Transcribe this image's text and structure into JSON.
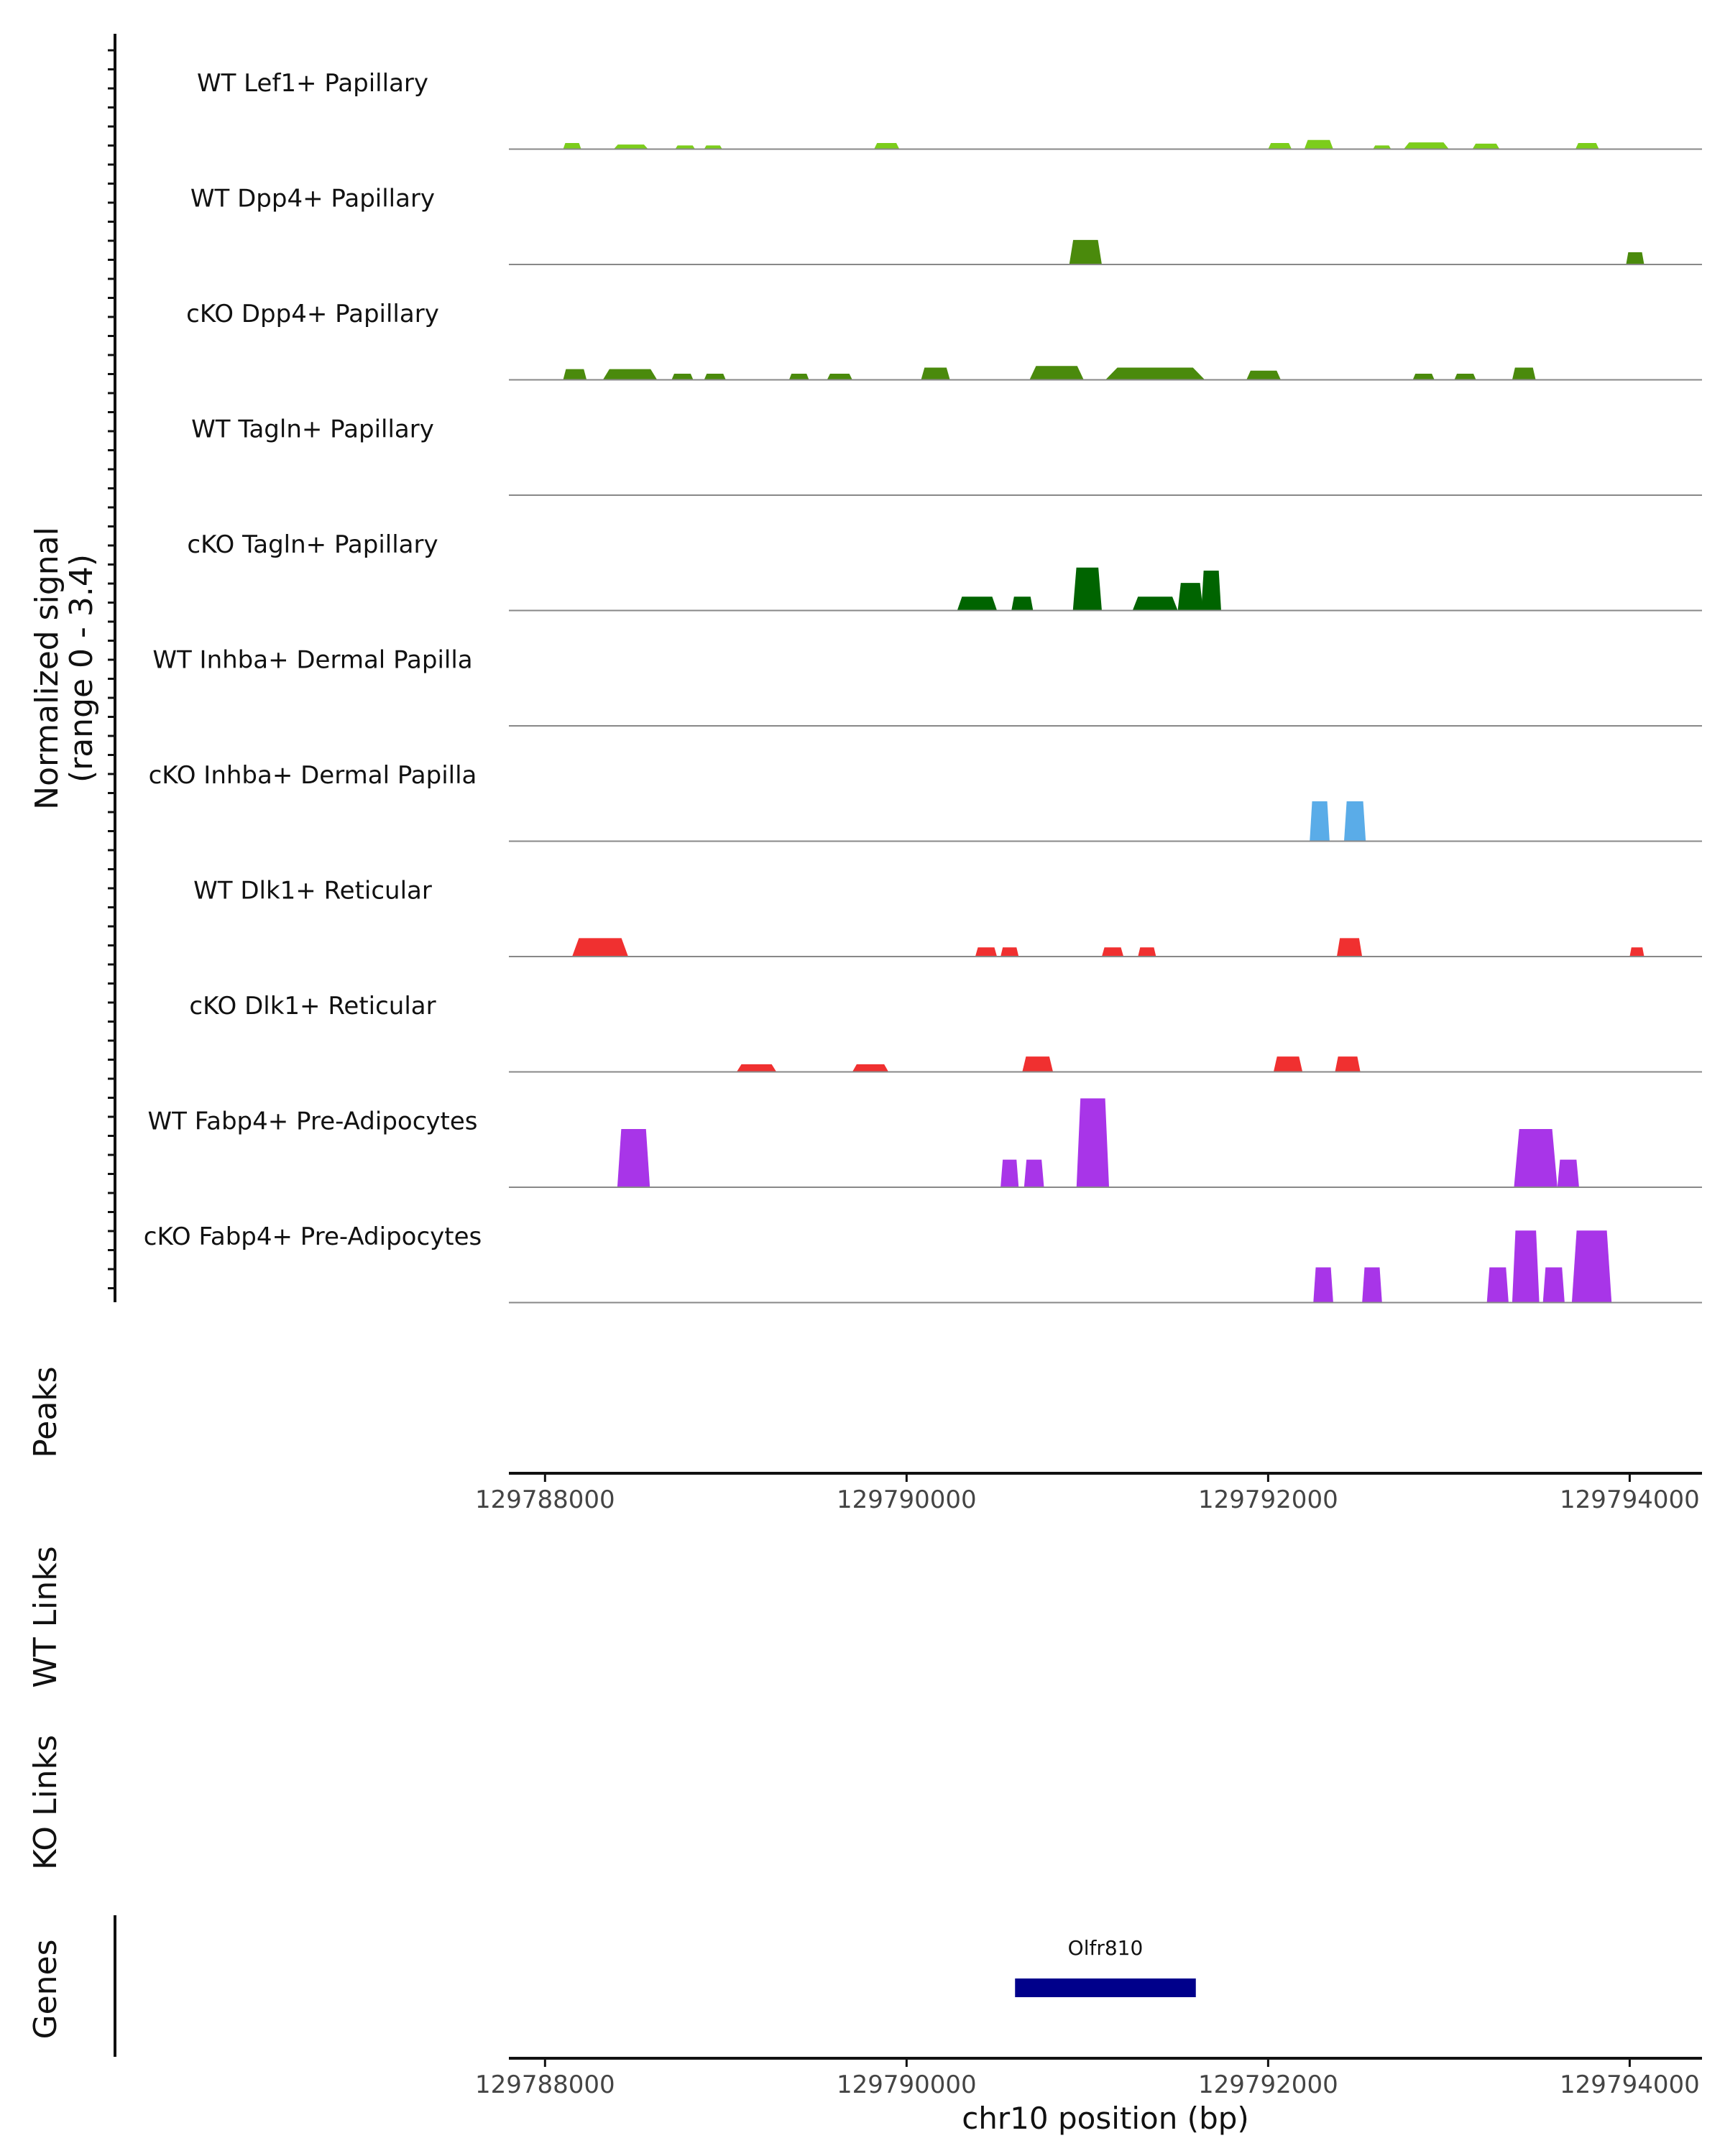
{
  "chart_data": {
    "type": "area",
    "chromosome": "chr10",
    "xlim": [
      129787800,
      129794400
    ],
    "x_ticks": [
      "129788000",
      "129790000",
      "129792000",
      "129794000"
    ],
    "x_tick_values": [
      129788000,
      129790000,
      129792000,
      129794000
    ],
    "xlabel": "chr10 position (bp)",
    "ylabel_line1": "Normalized signal",
    "ylabel_line2": "(range 0 - 3.4)",
    "ylim": [
      0,
      3.4
    ],
    "side_labels": {
      "peaks": "Peaks",
      "wt_links": "WT Links",
      "ko_links": "KO Links",
      "genes": "Genes"
    },
    "tracks": [
      {
        "name": "WT Lef1+ Papillary",
        "color": "#7ccd1c",
        "peaks": [
          [
            129788100,
            129788200,
            0.2
          ],
          [
            129788380,
            129788570,
            0.15
          ],
          [
            129788720,
            129788830,
            0.12
          ],
          [
            129788880,
            129788980,
            0.12
          ],
          [
            129789820,
            129789960,
            0.2
          ],
          [
            129792000,
            129792130,
            0.2
          ],
          [
            129792200,
            129792360,
            0.3
          ],
          [
            129792580,
            129792680,
            0.12
          ],
          [
            129792750,
            129793000,
            0.22
          ],
          [
            129793130,
            129793280,
            0.18
          ],
          [
            129793700,
            129793830,
            0.2
          ]
        ]
      },
      {
        "name": "WT Dpp4+ Papillary",
        "color": "#4a8a0c",
        "peaks": [
          [
            129790900,
            129791080,
            0.8
          ],
          [
            129793980,
            129794080,
            0.4
          ]
        ]
      },
      {
        "name": "cKO Dpp4+ Papillary",
        "color": "#4a8a0c",
        "peaks": [
          [
            129788100,
            129788230,
            0.35
          ],
          [
            129788320,
            129788620,
            0.35
          ],
          [
            129788700,
            129788820,
            0.2
          ],
          [
            129788880,
            129789000,
            0.2
          ],
          [
            129789350,
            129789460,
            0.2
          ],
          [
            129789560,
            129789700,
            0.2
          ],
          [
            129790080,
            129790240,
            0.4
          ],
          [
            129790680,
            129790980,
            0.45
          ],
          [
            129791100,
            129791650,
            0.4
          ],
          [
            129791880,
            129792070,
            0.3
          ],
          [
            129792800,
            129792920,
            0.2
          ],
          [
            129793030,
            129793150,
            0.2
          ],
          [
            129793350,
            129793480,
            0.4
          ]
        ]
      },
      {
        "name": "WT Tagln+ Papillary",
        "color": "#006400",
        "peaks": []
      },
      {
        "name": "cKO Tagln+ Papillary",
        "color": "#006400",
        "peaks": [
          [
            129790280,
            129790500,
            0.45
          ],
          [
            129790580,
            129790700,
            0.45
          ],
          [
            129790920,
            129791080,
            1.4
          ],
          [
            129791250,
            129791500,
            0.45
          ],
          [
            129791500,
            129791640,
            0.9
          ],
          [
            129791630,
            129791740,
            1.3
          ]
        ]
      },
      {
        "name": "WT Inhba+ Dermal Papilla",
        "color": "#5aace8",
        "peaks": []
      },
      {
        "name": "cKO Inhba+ Dermal Papilla",
        "color": "#5aace8",
        "peaks": [
          [
            129792230,
            129792340,
            1.3
          ],
          [
            129792420,
            129792540,
            1.3
          ]
        ]
      },
      {
        "name": "WT Dlk1+ Reticular",
        "color": "#f03030",
        "peaks": [
          [
            129788150,
            129788460,
            0.6
          ],
          [
            129790380,
            129790500,
            0.3
          ],
          [
            129790520,
            129790620,
            0.3
          ],
          [
            129791080,
            129791200,
            0.3
          ],
          [
            129791280,
            129791380,
            0.3
          ],
          [
            129792380,
            129792520,
            0.6
          ],
          [
            129794000,
            129794080,
            0.3
          ]
        ]
      },
      {
        "name": "cKO Dlk1+ Reticular",
        "color": "#f03030",
        "peaks": [
          [
            129789060,
            129789280,
            0.25
          ],
          [
            129789700,
            129789900,
            0.25
          ],
          [
            129790640,
            129790810,
            0.5
          ],
          [
            129792030,
            129792190,
            0.5
          ],
          [
            129792370,
            129792510,
            0.5
          ]
        ]
      },
      {
        "name": "WT Fabp4+ Pre-Adipocytes",
        "color": "#a835e8",
        "peaks": [
          [
            129788400,
            129788580,
            1.9
          ],
          [
            129790520,
            129790620,
            0.9
          ],
          [
            129790650,
            129790760,
            0.9
          ],
          [
            129790940,
            129791120,
            2.9
          ],
          [
            129793360,
            129793600,
            1.9
          ],
          [
            129793600,
            129793720,
            0.9
          ]
        ]
      },
      {
        "name": "cKO Fabp4+ Pre-Adipocytes",
        "color": "#a835e8",
        "peaks": [
          [
            129792250,
            129792360,
            1.15
          ],
          [
            129792520,
            129792630,
            1.15
          ],
          [
            129793210,
            129793330,
            1.15
          ],
          [
            129793350,
            129793500,
            2.35
          ],
          [
            129793520,
            129793640,
            1.15
          ],
          [
            129793680,
            129793900,
            2.35
          ]
        ]
      }
    ],
    "genes": [
      {
        "name": "Olfr810",
        "start": 129790600,
        "end": 129791600,
        "color": "#00008b"
      }
    ]
  }
}
